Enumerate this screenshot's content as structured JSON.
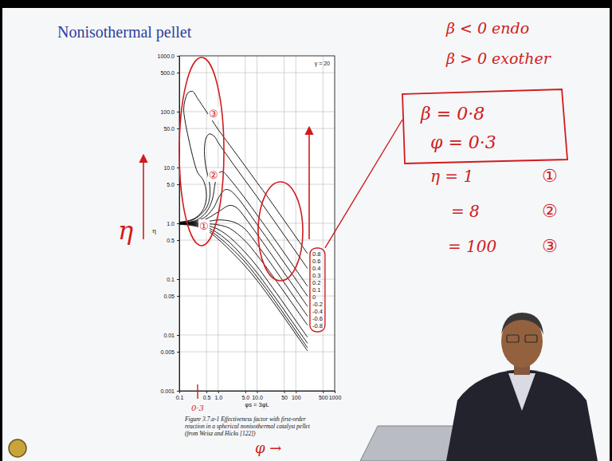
{
  "chart_data": {
    "type": "line",
    "title": "Nonisothermal pellet",
    "xlabel": "φs = 3φL",
    "ylabel": "η",
    "caption": [
      "Figure 3.7.a-1 Effectiveness factor with first-order",
      "reaction in a spherical nonisothermal catalyst pellet",
      "(from Weisz and Hicks [122])"
    ],
    "log": true,
    "grid": true,
    "legend": "right",
    "color": "#000000",
    "xlim": [
      0.1,
      1000
    ],
    "ylim": [
      0.001,
      1000
    ],
    "xticks": [
      0.1,
      0.5,
      {
        "value": 1,
        "label": "1.0"
      },
      {
        "value": 5,
        "label": "5.0"
      },
      {
        "value": 10,
        "label": "10.0"
      },
      50,
      100,
      500,
      1000
    ],
    "yticks": [
      {
        "value": 1000,
        "label": "1000.0"
      },
      {
        "value": 500,
        "label": "500.0"
      },
      {
        "value": 100,
        "label": "100.0"
      },
      {
        "value": 50,
        "label": "50.0"
      },
      {
        "value": 10,
        "label": "10.0"
      },
      {
        "value": 5,
        "label": "5.0"
      },
      {
        "value": 1,
        "label": "1.0"
      },
      0.5,
      0.1,
      0.05,
      0.01,
      0.005,
      0.001
    ],
    "series": [
      {
        "name": "0.8",
        "x": [
          0.1,
          0.2,
          0.3,
          0.4,
          0.48,
          0.5,
          0.47,
          0.4,
          0.3,
          0.22,
          0.17,
          0.14,
          0.13,
          0.14,
          0.17,
          0.22,
          0.3,
          0.5,
          1,
          2,
          5,
          10,
          20,
          50,
          100,
          200
        ],
        "values": [
          1.05,
          1.15,
          1.35,
          1.7,
          2.4,
          3.2,
          4.6,
          6.2,
          8,
          16,
          35,
          70,
          110,
          160,
          220,
          230,
          170,
          100,
          48,
          25,
          10.5,
          5.4,
          2.8,
          1.13,
          0.57,
          0.287
        ]
      },
      {
        "name": "0.6",
        "x": [
          0.1,
          0.2,
          0.3,
          0.5,
          0.6,
          0.62,
          0.58,
          0.5,
          0.45,
          0.45,
          0.5,
          0.6,
          0.8,
          1,
          2,
          5,
          10,
          20,
          50,
          100,
          200
        ],
        "values": [
          1.04,
          1.12,
          1.3,
          1.9,
          2.8,
          4,
          6,
          9,
          15,
          25,
          35,
          40,
          36,
          28,
          14,
          5.8,
          3,
          1.52,
          0.615,
          0.309,
          0.155
        ]
      },
      {
        "name": "0.4",
        "x": [
          0.1,
          0.2,
          0.3,
          0.5,
          0.7,
          0.85,
          1,
          1.3,
          2,
          5,
          10,
          20,
          50,
          100,
          200
        ],
        "values": [
          1.02,
          1.07,
          1.17,
          1.6,
          2.6,
          5.5,
          7.8,
          8.4,
          6.2,
          2.75,
          1.42,
          0.73,
          0.296,
          0.149,
          0.0745
        ]
      },
      {
        "name": "0.3",
        "x": [
          0.1,
          0.2,
          0.3,
          0.5,
          0.8,
          1,
          1.5,
          2,
          3,
          5,
          10,
          20,
          50,
          100,
          200
        ],
        "values": [
          1.01,
          1.05,
          1.12,
          1.35,
          2,
          2.8,
          4,
          3.9,
          3,
          1.9,
          0.96,
          0.49,
          0.198,
          0.099,
          0.0495
        ]
      },
      {
        "name": "0.2",
        "x": [
          0.1,
          0.2,
          0.3,
          0.5,
          1,
          2,
          3,
          5,
          10,
          20,
          50,
          100,
          200
        ],
        "values": [
          1,
          1.03,
          1.07,
          1.2,
          1.6,
          2.1,
          1.9,
          1.25,
          0.64,
          0.325,
          0.13,
          0.065,
          0.0325
        ]
      },
      {
        "name": "0.1",
        "x": [
          0.1,
          0.2,
          0.3,
          0.5,
          1,
          2,
          3,
          5,
          10,
          20,
          50,
          100,
          200
        ],
        "values": [
          1,
          1.01,
          1.03,
          1.07,
          1.15,
          1.1,
          1,
          0.78,
          0.42,
          0.216,
          0.087,
          0.0433,
          0.0217
        ]
      },
      {
        "name": "0",
        "x": [
          0.1,
          0.2,
          0.3,
          0.5,
          1,
          2,
          5,
          10,
          20,
          50,
          100,
          200
        ],
        "values": [
          1,
          1,
          0.99,
          0.98,
          0.94,
          0.81,
          0.48,
          0.27,
          0.143,
          0.059,
          0.0297,
          0.015
        ]
      },
      {
        "name": "-0.2",
        "x": [
          0.1,
          0.2,
          0.3,
          0.5,
          1,
          2,
          5,
          10,
          20,
          50,
          100,
          200
        ],
        "values": [
          0.99,
          0.98,
          0.96,
          0.92,
          0.78,
          0.56,
          0.3,
          0.17,
          0.088,
          0.036,
          0.018,
          0.0091
        ]
      },
      {
        "name": "-0.4",
        "x": [
          0.1,
          0.2,
          0.3,
          0.5,
          1,
          2,
          5,
          10,
          20,
          50,
          100,
          200
        ],
        "values": [
          0.98,
          0.96,
          0.93,
          0.86,
          0.66,
          0.45,
          0.23,
          0.13,
          0.068,
          0.028,
          0.014,
          0.0071
        ]
      },
      {
        "name": "-0.6",
        "x": [
          0.1,
          0.2,
          0.3,
          0.5,
          1,
          2,
          5,
          10,
          20,
          50,
          100,
          200
        ],
        "values": [
          0.97,
          0.94,
          0.9,
          0.81,
          0.58,
          0.38,
          0.2,
          0.11,
          0.058,
          0.0236,
          0.0118,
          0.0059
        ]
      },
      {
        "name": "-0.8",
        "x": [
          0.1,
          0.2,
          0.3,
          0.5,
          1,
          2,
          5,
          10,
          20,
          50,
          100,
          200
        ],
        "values": [
          0.96,
          0.92,
          0.87,
          0.76,
          0.52,
          0.33,
          0.17,
          0.095,
          0.05,
          0.0206,
          0.0103,
          0.0052
        ]
      }
    ],
    "annotations": [
      "γ = 20",
      "β < 0  endo",
      "β > 0  exother",
      "β = 0·8",
      "φ = 0·3",
      "η = 1",
      "①",
      "= 8",
      "②",
      "= 100",
      "③",
      "η",
      "φ →",
      "0·3",
      "①",
      "②",
      "③"
    ]
  }
}
